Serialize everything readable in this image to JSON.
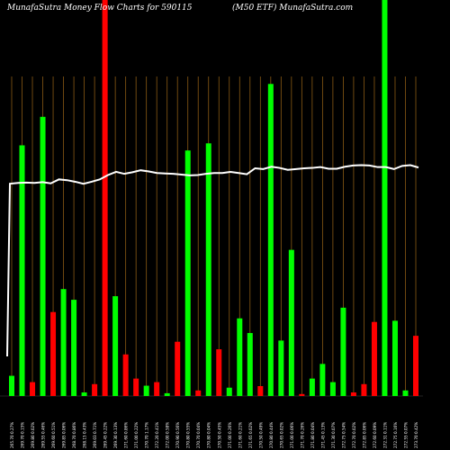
{
  "title_left": "MunafaSutra  Money Flow  Charts for 590115",
  "title_right": "(M50   ETF)  MunafaSutra.com",
  "chart_data": {
    "type": "bar",
    "xlabels": [
      "265.70 0.27%",
      "269.70 0.15%",
      "269.80 0.02%",
      "269.55 0.46%",
      "269.60 0.51%",
      "269.85 0.06%",
      "268.70 0.86%",
      "268.15 0.43%",
      "269.03 0.71%",
      "269.45 0.22%",
      "269.30 0.13%",
      "271.60 0.86%",
      "271.00 0.22%",
      "270.70 1.17%",
      "272.20 0.41%",
      "272.00 0.58%",
      "270.90 0.56%",
      "270.80 0.55%",
      "270.70 0.04%",
      "270.80 0.04%",
      "270.50 0.45%",
      "271.00 0.26%",
      "271.60 0.21%",
      "271.65 0.02%",
      "270.50 0.49%",
      "270.80 0.44%",
      "270.65 0.02%",
      "271.00 0.06%",
      "271.70 0.26%",
      "271.80 0.04%",
      "271.45 0.13%",
      "271.30 0.07%",
      "272.75 0.54%",
      "272.70 0.02%",
      "272.85 0.06%",
      "272.60 0.09%",
      "272.31 0.11%",
      "272.75 0.16%",
      "272.55 0.07%",
      "273.70 0.42%"
    ],
    "bar_colors": [
      "green",
      "green",
      "red",
      "green",
      "red",
      "green",
      "green",
      "green",
      "red",
      "red",
      "green",
      "red",
      "red",
      "green",
      "red",
      "green",
      "red",
      "green",
      "red",
      "green",
      "red",
      "green",
      "green",
      "green",
      "red",
      "green",
      "green",
      "green",
      "red",
      "green",
      "green",
      "green",
      "green",
      "red",
      "red",
      "red",
      "green",
      "green",
      "green",
      "red"
    ],
    "bar_heights": [
      0.051,
      0.633,
      0.035,
      0.705,
      0.212,
      0.27,
      0.243,
      0.009,
      0.03,
      1.0,
      0.252,
      0.105,
      0.044,
      0.026,
      0.035,
      0.007,
      0.137,
      0.62,
      0.014,
      0.638,
      0.118,
      0.021,
      0.196,
      0.159,
      0.025,
      0.788,
      0.14,
      0.369,
      0.005,
      0.044,
      0.081,
      0.035,
      0.223,
      0.009,
      0.03,
      0.187,
      1.0,
      0.19,
      0.014,
      0.152
    ],
    "line_values": [
      0.536,
      0.538,
      0.539,
      0.538,
      0.54,
      0.537,
      0.547,
      0.545,
      0.541,
      0.536,
      0.541,
      0.547,
      0.558,
      0.566,
      0.561,
      0.565,
      0.57,
      0.567,
      0.563,
      0.562,
      0.561,
      0.559,
      0.557,
      0.558,
      0.561,
      0.563,
      0.563,
      0.566,
      0.563,
      0.56,
      0.575,
      0.573,
      0.579,
      0.576,
      0.571,
      0.573,
      0.575,
      0.576,
      0.578,
      0.574,
      0.574,
      0.579,
      0.582,
      0.583,
      0.582,
      0.578,
      0.578,
      0.573,
      0.581,
      0.583,
      0.577
    ],
    "grid": true
  }
}
